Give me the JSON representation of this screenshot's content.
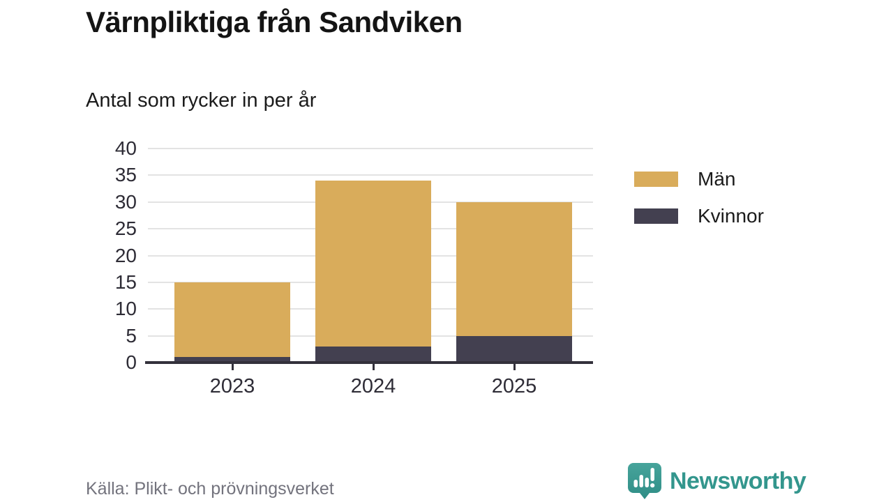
{
  "chart_data": {
    "type": "bar",
    "stacked": true,
    "title": "Värnpliktiga från Sandviken",
    "subtitle": "Antal som rycker in per år",
    "xlabel": "",
    "ylabel": "",
    "categories": [
      "2023",
      "2024",
      "2025"
    ],
    "series": [
      {
        "name": "Män",
        "color": "#d9ac5b",
        "values": [
          14,
          31,
          25
        ]
      },
      {
        "name": "Kvinnor",
        "color": "#434050",
        "values": [
          1,
          3,
          5
        ]
      }
    ],
    "totals": [
      15,
      34,
      30
    ],
    "ylim": [
      0,
      40
    ],
    "yticks": [
      0,
      5,
      10,
      15,
      20,
      25,
      30,
      35,
      40
    ],
    "grid": true,
    "legend_position": "right"
  },
  "footer": {
    "source": "Källa: Plikt- och prövningsverket",
    "brand": "Newsworthy"
  },
  "colors": {
    "men": "#d9ac5b",
    "women": "#434050",
    "gridline": "#e3e3e3",
    "axis": "#33313b",
    "text": "#1b1b1b",
    "source_text": "#73737d",
    "brand_teal": "#33968d"
  }
}
